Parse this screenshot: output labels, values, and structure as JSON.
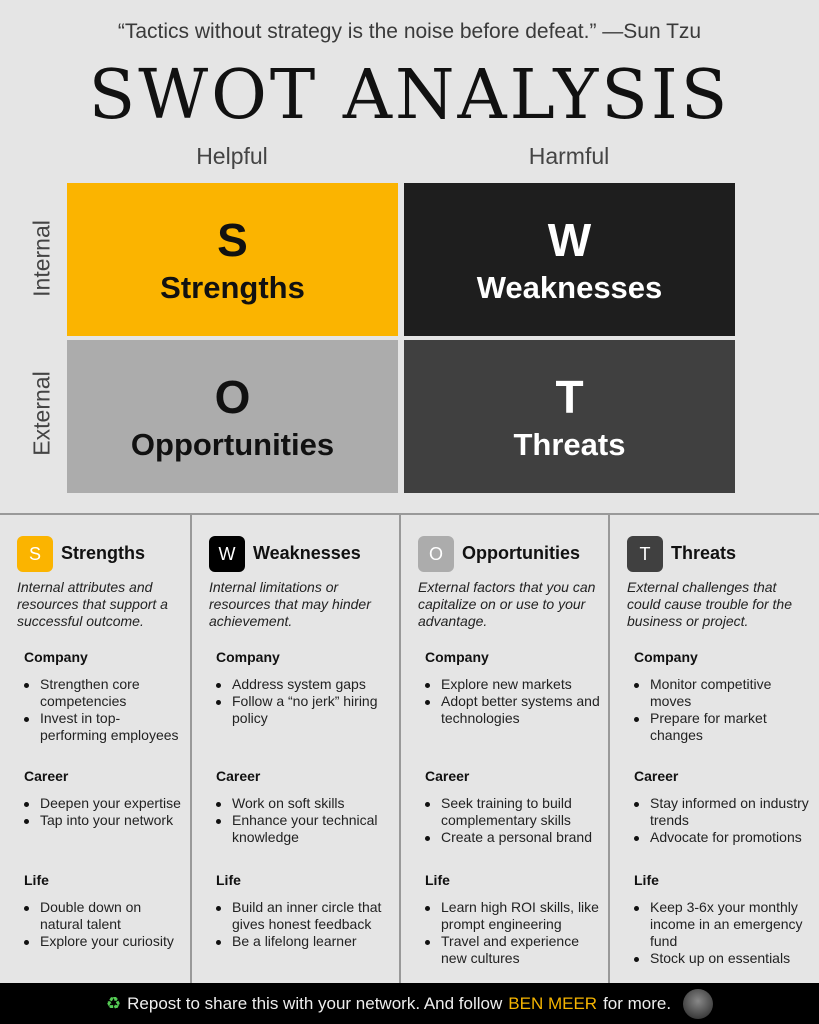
{
  "quote": "“Tactics without strategy is the noise before defeat.” —Sun Tzu",
  "title": "SWOT ANALYSIS",
  "matrix": {
    "col_labels": [
      "Helpful",
      "Harmful"
    ],
    "row_labels": [
      "Internal",
      "External"
    ],
    "quadrants": [
      {
        "letter": "S",
        "name": "Strengths",
        "color": "#fbb400",
        "text_color": "#111111"
      },
      {
        "letter": "W",
        "name": "Weaknesses",
        "color": "#1e1e1e",
        "text_color": "#ffffff"
      },
      {
        "letter": "O",
        "name": "Opportunities",
        "color": "#acacac",
        "text_color": "#111111"
      },
      {
        "letter": "T",
        "name": "Threats",
        "color": "#404040",
        "text_color": "#ffffff"
      }
    ]
  },
  "columns": [
    {
      "letter": "S",
      "title": "Strengths",
      "badge_color": "#fbb400",
      "desc": "Internal attributes and resources that support a successful outcome.",
      "groups": [
        {
          "h": "Company",
          "items": [
            "Strengthen core competencies",
            "Invest in top-performing employees"
          ]
        },
        {
          "h": "Career",
          "items": [
            "Deepen your expertise",
            "Tap into your network"
          ]
        },
        {
          "h": "Life",
          "items": [
            "Double down on natural talent",
            "Explore your curiosity"
          ]
        }
      ]
    },
    {
      "letter": "W",
      "title": "Weaknesses",
      "badge_color": "#000000",
      "desc": "Internal limitations or resources that may hinder achievement.",
      "groups": [
        {
          "h": "Company",
          "items": [
            "Address system gaps",
            "Follow a “no jerk” hiring policy"
          ]
        },
        {
          "h": "Career",
          "items": [
            "Work on soft skills",
            "Enhance your technical knowledge"
          ]
        },
        {
          "h": "Life",
          "items": [
            "Build an inner circle that gives honest feedback",
            "Be a lifelong learner"
          ]
        }
      ]
    },
    {
      "letter": "O",
      "title": "Opportunities",
      "badge_color": "#acacac",
      "desc": "External factors that you can capitalize on or use to your advantage.",
      "groups": [
        {
          "h": "Company",
          "items": [
            "Explore new markets",
            "Adopt better systems and technologies"
          ]
        },
        {
          "h": "Career",
          "items": [
            "Seek training to build complementary skills",
            "Create a personal brand"
          ]
        },
        {
          "h": "Life",
          "items": [
            "Learn high ROI skills, like prompt engineering",
            "Travel and experience new cultures"
          ]
        }
      ]
    },
    {
      "letter": "T",
      "title": "Threats",
      "badge_color": "#404040",
      "desc": "External challenges that could cause trouble for the business or project.",
      "groups": [
        {
          "h": "Company",
          "items": [
            "Monitor competitive moves",
            "Prepare for market changes"
          ]
        },
        {
          "h": "Career",
          "items": [
            "Stay informed on industry trends",
            "Advocate for promotions"
          ]
        },
        {
          "h": "Life",
          "items": [
            "Keep 3-6x your monthly income in an emergency fund",
            "Stock up on essentials"
          ]
        }
      ]
    }
  ],
  "footer": {
    "icon": "recycle-icon",
    "pre": "Repost to share this with your network. And follow",
    "name": "BEN MEER",
    "post": "for more."
  }
}
